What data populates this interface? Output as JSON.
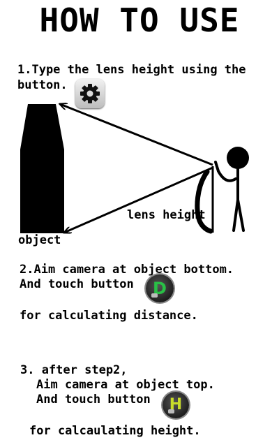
{
  "title": "HOW TO USE",
  "step1": {
    "line1": "1.Type the lens height using the",
    "line2": "button.",
    "button_icon": "gear-icon"
  },
  "illustration": {
    "object_label": "object",
    "lens_height_label": "lens height"
  },
  "step2": {
    "line1": "2.Aim camera at object bottom.",
    "line2": "And touch button",
    "button_letter": "D",
    "line3": "for calculating distance."
  },
  "step3": {
    "line1": "3. after step2,",
    "line2": "Aim camera at object top.",
    "line3": "And touch button",
    "button_letter": "H",
    "line4": "for calcaulating height."
  },
  "colors": {
    "d_button_glyph": "#29c046",
    "h_button_glyph": "#c8dc2a"
  }
}
